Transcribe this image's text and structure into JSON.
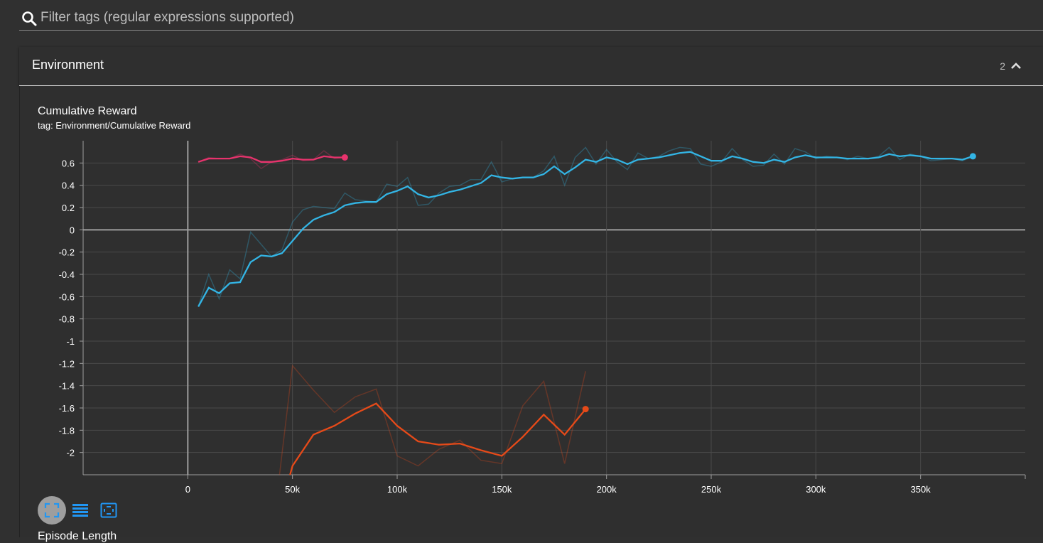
{
  "filter": {
    "placeholder": "Filter tags (regular expressions supported)"
  },
  "section": {
    "title": "Environment",
    "count": "2"
  },
  "card": {
    "title": "Cumulative Reward",
    "tag": "tag: Environment/Cumulative Reward",
    "next_title": "Episode Length"
  },
  "controls": [
    {
      "icon": "fullscreen-icon",
      "active": true
    },
    {
      "icon": "data-table-icon",
      "active": false
    },
    {
      "icon": "fit-domain-icon",
      "active": false
    }
  ],
  "colors": {
    "background": "#303030",
    "grid": "#4a4a4a",
    "axis": "#9e9e9e"
  },
  "chart_data": {
    "type": "line",
    "title": "Cumulative Reward",
    "xlim": [
      -50000,
      400000
    ],
    "ylim": [
      -2.2,
      0.8
    ],
    "x_ticks": [
      0,
      50000,
      100000,
      150000,
      200000,
      250000,
      300000,
      350000
    ],
    "x_tick_labels": [
      "0",
      "50k",
      "100k",
      "150k",
      "200k",
      "250k",
      "300k",
      "350k"
    ],
    "y_ticks": [
      0.6,
      0.4,
      0.2,
      0,
      -0.2,
      -0.4,
      -0.6,
      -0.8,
      -1,
      -1.2,
      -1.4,
      -1.6,
      -1.8,
      -2
    ],
    "y_tick_labels": [
      "0.6",
      "0.4",
      "0.2",
      "0",
      "-0.2",
      "-0.4",
      "-0.6",
      "-0.8",
      "-1",
      "-1.2",
      "-1.4",
      "-1.6",
      "-1.8",
      "-2"
    ],
    "grid": true,
    "series": [
      {
        "color": "#e8336d",
        "x": [
          5000,
          10000,
          15000,
          20000,
          25000,
          30000,
          35000,
          40000,
          45000,
          50000,
          55000,
          60000,
          65000,
          70000,
          75000
        ],
        "smoothed": [
          0.61,
          0.64,
          0.64,
          0.64,
          0.66,
          0.65,
          0.61,
          0.61,
          0.62,
          0.64,
          0.63,
          0.63,
          0.66,
          0.65,
          0.65
        ],
        "raw": [
          0.61,
          0.65,
          0.64,
          0.64,
          0.68,
          0.64,
          0.55,
          0.61,
          0.63,
          0.67,
          0.62,
          0.63,
          0.71,
          0.64,
          0.65
        ]
      },
      {
        "color": "#33b5e5",
        "x": [
          5000,
          10000,
          15000,
          20000,
          25000,
          30000,
          35000,
          40000,
          45000,
          50000,
          55000,
          60000,
          65000,
          70000,
          75000,
          80000,
          85000,
          90000,
          95000,
          100000,
          105000,
          110000,
          115000,
          120000,
          125000,
          130000,
          135000,
          140000,
          145000,
          150000,
          155000,
          160000,
          165000,
          170000,
          175000,
          180000,
          185000,
          190000,
          195000,
          200000,
          205000,
          210000,
          215000,
          220000,
          225000,
          230000,
          235000,
          240000,
          245000,
          250000,
          255000,
          260000,
          265000,
          270000,
          275000,
          280000,
          285000,
          290000,
          295000,
          300000,
          305000,
          310000,
          315000,
          320000,
          325000,
          330000,
          335000,
          340000,
          345000,
          350000,
          355000,
          360000,
          365000,
          370000,
          375000
        ],
        "smoothed": [
          -0.69,
          -0.52,
          -0.57,
          -0.48,
          -0.47,
          -0.29,
          -0.23,
          -0.24,
          -0.21,
          -0.1,
          0.01,
          0.09,
          0.13,
          0.16,
          0.22,
          0.24,
          0.25,
          0.25,
          0.32,
          0.35,
          0.39,
          0.32,
          0.29,
          0.31,
          0.34,
          0.36,
          0.39,
          0.42,
          0.49,
          0.47,
          0.46,
          0.47,
          0.47,
          0.5,
          0.57,
          0.5,
          0.56,
          0.63,
          0.61,
          0.65,
          0.63,
          0.59,
          0.63,
          0.64,
          0.65,
          0.67,
          0.69,
          0.7,
          0.66,
          0.62,
          0.62,
          0.66,
          0.64,
          0.61,
          0.6,
          0.63,
          0.61,
          0.65,
          0.67,
          0.65,
          0.65,
          0.65,
          0.64,
          0.64,
          0.64,
          0.65,
          0.68,
          0.66,
          0.67,
          0.66,
          0.64,
          0.64,
          0.64,
          0.63,
          0.66
        ],
        "raw": [
          -0.69,
          -0.4,
          -0.62,
          -0.36,
          -0.44,
          -0.02,
          -0.13,
          -0.24,
          -0.18,
          0.07,
          0.18,
          0.21,
          0.2,
          0.19,
          0.33,
          0.27,
          0.26,
          0.25,
          0.41,
          0.39,
          0.47,
          0.22,
          0.23,
          0.33,
          0.39,
          0.4,
          0.45,
          0.45,
          0.61,
          0.43,
          0.46,
          0.47,
          0.47,
          0.53,
          0.66,
          0.4,
          0.65,
          0.74,
          0.59,
          0.72,
          0.61,
          0.54,
          0.69,
          0.64,
          0.66,
          0.71,
          0.74,
          0.73,
          0.59,
          0.57,
          0.61,
          0.73,
          0.63,
          0.57,
          0.58,
          0.68,
          0.59,
          0.73,
          0.7,
          0.64,
          0.66,
          0.65,
          0.63,
          0.66,
          0.64,
          0.66,
          0.74,
          0.63,
          0.68,
          0.66,
          0.62,
          0.63,
          0.64,
          0.62,
          0.66
        ]
      },
      {
        "color": "#e64a19",
        "x": [
          40000,
          50000,
          60000,
          70000,
          80000,
          90000,
          100000,
          110000,
          120000,
          130000,
          140000,
          150000,
          160000,
          170000,
          180000,
          190000
        ],
        "smoothed": [
          -2.8,
          -2.12,
          -1.84,
          -1.76,
          -1.65,
          -1.56,
          -1.76,
          -1.9,
          -1.93,
          -1.92,
          -1.98,
          -2.03,
          -1.86,
          -1.66,
          -1.84,
          -1.61
        ],
        "raw": [
          -2.8,
          -1.22,
          -1.44,
          -1.64,
          -1.5,
          -1.43,
          -2.03,
          -2.12,
          -1.97,
          -1.89,
          -2.07,
          -2.1,
          -1.58,
          -1.36,
          -2.1,
          -1.27
        ]
      }
    ]
  }
}
